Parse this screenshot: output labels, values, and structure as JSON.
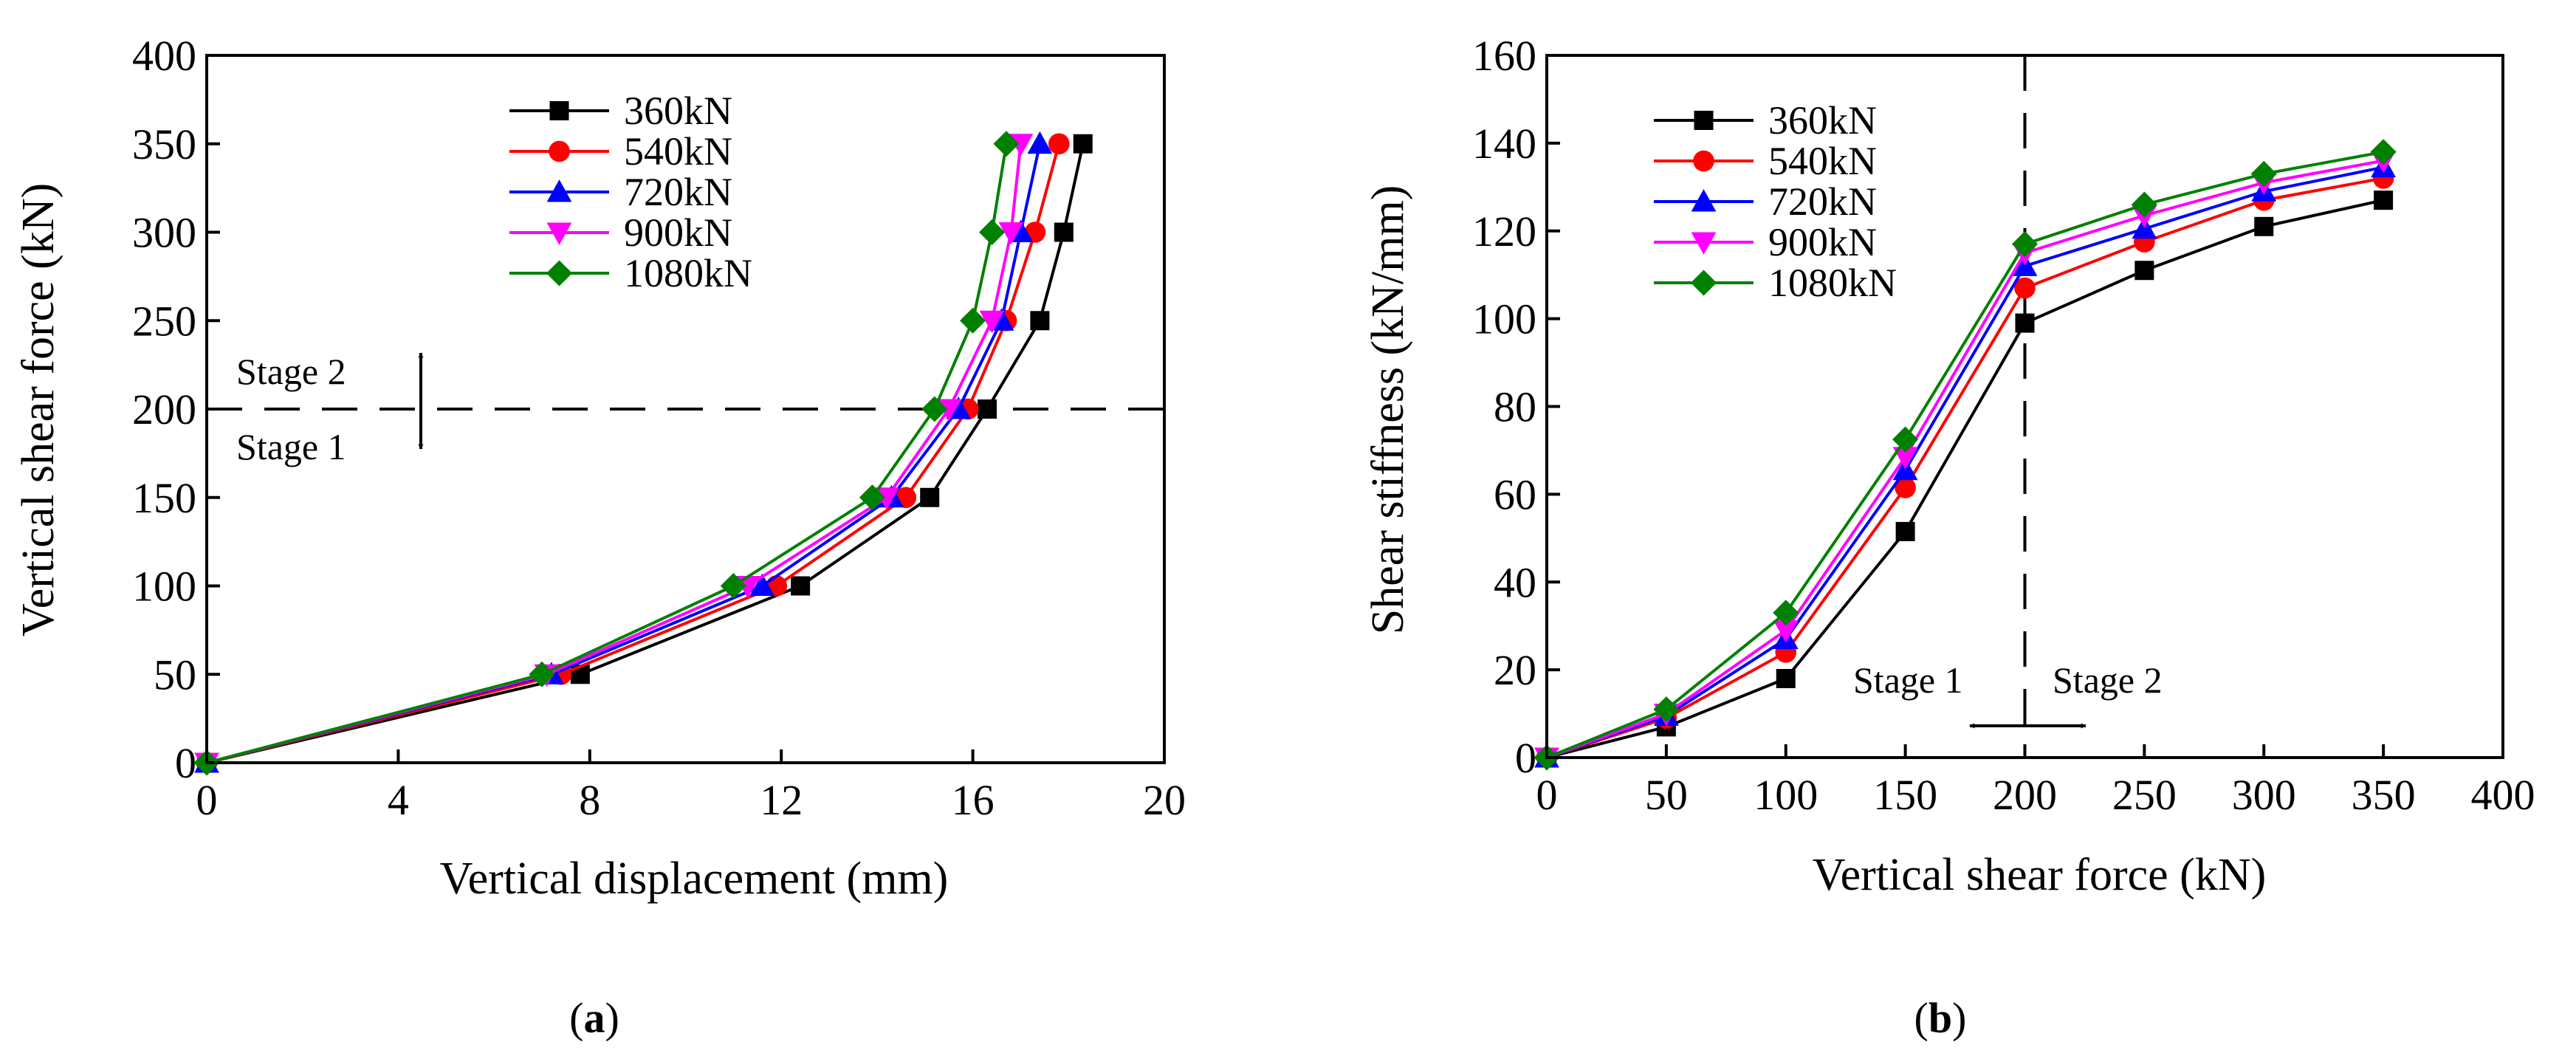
{
  "colors": {
    "360kN": "#000000",
    "540kN": "#ff0000",
    "720kN": "#0000ff",
    "900kN": "#ff00ff",
    "1080kN": "#008000"
  },
  "chart_data": [
    {
      "type": "line",
      "panel_label": "a",
      "xlabel": "Vertical displacement (mm)",
      "ylabel": "Vertical shear force (kN)",
      "xlim": [
        0,
        20
      ],
      "ylim": [
        0,
        400
      ],
      "xticks": [
        0,
        4,
        8,
        12,
        16,
        20
      ],
      "yticks": [
        0,
        50,
        100,
        150,
        200,
        250,
        300,
        350,
        400
      ],
      "legend_position": "top-center",
      "grid": false,
      "reference_line": {
        "orientation": "horizontal",
        "value": 200,
        "style": "dashed"
      },
      "stage_labels": {
        "upper": "Stage 2",
        "lower": "Stage 1"
      },
      "series": [
        {
          "name": "360kN",
          "color": "#000000",
          "marker": "square",
          "x": [
            0,
            7.8,
            12.4,
            15.1,
            16.3,
            17.4,
            17.9,
            18.3
          ],
          "y": [
            0,
            50,
            100,
            150,
            200,
            250,
            300,
            350
          ]
        },
        {
          "name": "540kN",
          "color": "#ff0000",
          "marker": "circle",
          "x": [
            0,
            7.4,
            11.9,
            14.6,
            15.9,
            16.7,
            17.3,
            17.8
          ],
          "y": [
            0,
            50,
            100,
            150,
            200,
            250,
            300,
            350
          ]
        },
        {
          "name": "720kN",
          "color": "#0000ff",
          "marker": "triangle-up",
          "x": [
            0,
            7.2,
            11.6,
            14.3,
            15.7,
            16.6,
            17.0,
            17.4
          ],
          "y": [
            0,
            50,
            100,
            150,
            200,
            250,
            300,
            350
          ]
        },
        {
          "name": "900kN",
          "color": "#ff00ff",
          "marker": "triangle-down",
          "x": [
            0,
            7.1,
            11.3,
            14.2,
            15.5,
            16.4,
            16.8,
            17.0
          ],
          "y": [
            0,
            50,
            100,
            150,
            200,
            250,
            300,
            350
          ]
        },
        {
          "name": "1080kN",
          "color": "#008000",
          "marker": "diamond",
          "x": [
            0,
            7.0,
            11.0,
            13.9,
            15.2,
            16.0,
            16.4,
            16.7
          ],
          "y": [
            0,
            50,
            100,
            150,
            200,
            250,
            300,
            350
          ]
        }
      ]
    },
    {
      "type": "line",
      "panel_label": "b",
      "xlabel": "Vertical shear force (kN)",
      "ylabel": "Shear stiffness (kN/mm)",
      "xlim": [
        0,
        400
      ],
      "ylim": [
        0,
        160
      ],
      "xticks": [
        0,
        50,
        100,
        150,
        200,
        250,
        300,
        350,
        400
      ],
      "yticks": [
        0,
        20,
        40,
        60,
        80,
        100,
        120,
        140,
        160
      ],
      "legend_position": "top-left",
      "grid": false,
      "reference_line": {
        "orientation": "vertical",
        "value": 200,
        "style": "dashed"
      },
      "stage_labels": {
        "left": "Stage 1",
        "right": "Stage 2"
      },
      "series": [
        {
          "name": "360kN",
          "color": "#000000",
          "marker": "square",
          "x": [
            0,
            50,
            100,
            150,
            200,
            250,
            300,
            350
          ],
          "y": [
            0,
            7,
            18,
            51.5,
            99,
            111,
            121,
            127
          ]
        },
        {
          "name": "540kN",
          "color": "#ff0000",
          "marker": "circle",
          "x": [
            0,
            50,
            100,
            150,
            200,
            250,
            300,
            350
          ],
          "y": [
            0,
            9,
            24,
            61.5,
            107,
            117.5,
            127,
            132
          ]
        },
        {
          "name": "720kN",
          "color": "#0000ff",
          "marker": "triangle-up",
          "x": [
            0,
            50,
            100,
            150,
            200,
            250,
            300,
            350
          ],
          "y": [
            0,
            9.5,
            27,
            65.5,
            112,
            120.5,
            129,
            134.5
          ]
        },
        {
          "name": "900kN",
          "color": "#ff00ff",
          "marker": "triangle-down",
          "x": [
            0,
            50,
            100,
            150,
            200,
            250,
            300,
            350
          ],
          "y": [
            0,
            10,
            29,
            68.5,
            115,
            123.5,
            131,
            136
          ]
        },
        {
          "name": "1080kN",
          "color": "#008000",
          "marker": "diamond",
          "x": [
            0,
            50,
            100,
            150,
            200,
            250,
            300,
            350
          ],
          "y": [
            0,
            11,
            33,
            72.5,
            117,
            126,
            133,
            138
          ]
        }
      ]
    }
  ]
}
